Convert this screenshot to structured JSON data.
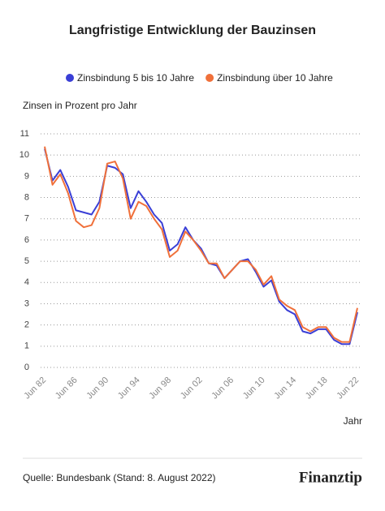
{
  "chart_data": {
    "type": "line",
    "title": "Langfristige Entwicklung der Bauzinsen",
    "y_label": "Zinsen in Prozent pro Jahr",
    "x_label": "Jahr",
    "source": "Quelle: Bundesbank (Stand: 8. August 2022)",
    "brand": "Finanztip",
    "categories": [
      "Jun 82",
      null,
      null,
      null,
      "Jun 86",
      null,
      null,
      null,
      "Jun 90",
      null,
      null,
      null,
      "Jun 94",
      null,
      null,
      null,
      "Jun 98",
      null,
      null,
      null,
      "Jun 02",
      null,
      null,
      null,
      "Jun 06",
      null,
      null,
      null,
      "Jun 10",
      null,
      null,
      null,
      "Jun 14",
      null,
      null,
      null,
      "Jun 18",
      null,
      null,
      null,
      "Jun 22"
    ],
    "series": [
      {
        "name": "Zinsbindung 5 bis 10 Jahre",
        "color": "#3a3fd6",
        "values": [
          10.3,
          8.8,
          9.3,
          8.5,
          7.4,
          7.3,
          7.2,
          7.8,
          9.5,
          9.4,
          9.1,
          7.5,
          8.3,
          7.8,
          7.2,
          6.8,
          5.5,
          5.8,
          6.6,
          6.0,
          5.6,
          4.9,
          4.8,
          4.2,
          4.6,
          5.0,
          5.1,
          4.5,
          3.8,
          4.1,
          3.1,
          2.7,
          2.5,
          1.7,
          1.6,
          1.8,
          1.8,
          1.3,
          1.1,
          1.1,
          2.6
        ]
      },
      {
        "name": "Zinsbindung über 10 Jahre",
        "color": "#f0703a",
        "values": [
          10.4,
          8.6,
          9.1,
          8.2,
          6.9,
          6.6,
          6.7,
          7.5,
          9.6,
          9.7,
          8.9,
          7.0,
          7.8,
          7.6,
          7.0,
          6.5,
          5.2,
          5.5,
          6.4,
          6.0,
          5.5,
          4.9,
          4.9,
          4.2,
          4.6,
          5.0,
          5.0,
          4.6,
          3.9,
          4.3,
          3.2,
          2.9,
          2.7,
          1.9,
          1.7,
          1.9,
          1.9,
          1.4,
          1.2,
          1.2,
          2.8
        ]
      }
    ],
    "ylim": [
      0,
      11
    ],
    "yticks": [
      0,
      1,
      2,
      3,
      4,
      5,
      6,
      7,
      8,
      9,
      10,
      11
    ],
    "grid": true
  }
}
